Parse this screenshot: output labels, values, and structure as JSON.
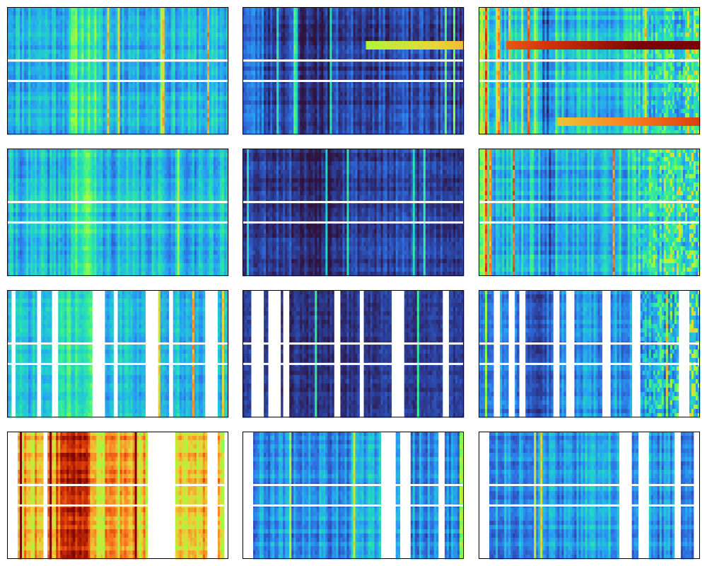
{
  "figure": {
    "title": "",
    "background": "#ffffff"
  },
  "chart_data": {
    "type": "heatmap",
    "layout": {
      "rows": 4,
      "cols": 3
    },
    "colormap": "jet",
    "axes": {
      "ticks": false,
      "xlabel": "",
      "ylabel": ""
    },
    "palette": [
      "#30123b",
      "#2b3f9a",
      "#2f6fe0",
      "#27a7f2",
      "#22d6c4",
      "#3ff28a",
      "#a2fc3c",
      "#e9d539",
      "#fb8022",
      "#d23105",
      "#7a0403"
    ],
    "panels": [
      {
        "id": "r1c1",
        "base": 0.34,
        "spread": 0.1,
        "band_boost": [
          [
            90,
            125,
            0.14
          ]
        ],
        "hot_rows": [],
        "right_hot": 0,
        "gaps_x": [],
        "white_rows": [
          0.42,
          0.58
        ],
        "seed": 11
      },
      {
        "id": "r1c2",
        "base": 0.12,
        "spread": 0.08,
        "band_boost": [
          [
            0,
            30,
            0.08
          ],
          [
            75,
            125,
            -0.06
          ]
        ],
        "hot_rows": [
          [
            0.28,
            0.55,
            1.0,
            0.62
          ]
        ],
        "right_hot": 0,
        "gaps_x": [],
        "white_rows": [
          0.42,
          0.58
        ],
        "seed": 23
      },
      {
        "id": "r1c3",
        "base": 0.36,
        "spread": 0.12,
        "band_boost": [
          [
            0,
            15,
            0.25
          ],
          [
            85,
            110,
            -0.15
          ]
        ],
        "hot_rows": [
          [
            0.28,
            0.12,
            1.0,
            0.85
          ],
          [
            0.88,
            0.35,
            1.0,
            0.72
          ]
        ],
        "right_hot": 0.25,
        "gaps_x": [],
        "white_rows": [
          0.42,
          0.58
        ],
        "seed": 37
      },
      {
        "id": "r2c1",
        "base": 0.34,
        "spread": 0.1,
        "band_boost": [
          [
            90,
            125,
            0.14
          ]
        ],
        "hot_rows": [],
        "right_hot": 0,
        "gaps_x": [],
        "white_rows": [
          0.42,
          0.58
        ],
        "seed": 41
      },
      {
        "id": "r2c2",
        "base": 0.11,
        "spread": 0.07,
        "band_boost": [
          [
            75,
            125,
            -0.06
          ]
        ],
        "hot_rows": [],
        "right_hot": 0,
        "gaps_x": [],
        "white_rows": [
          0.42,
          0.58
        ],
        "seed": 53
      },
      {
        "id": "r2c3",
        "base": 0.36,
        "spread": 0.12,
        "band_boost": [
          [
            0,
            15,
            0.22
          ],
          [
            85,
            110,
            -0.15
          ]
        ],
        "hot_rows": [],
        "right_hot": 0.3,
        "gaps_x": [],
        "white_rows": [
          0.42,
          0.58
        ],
        "seed": 67
      },
      {
        "id": "r3c1",
        "base": 0.34,
        "spread": 0.08,
        "band_boost": [
          [
            70,
            120,
            0.1
          ]
        ],
        "hot_rows": [],
        "right_hot": 0,
        "gaps_x": [
          [
            4,
            10
          ],
          [
            40,
            48
          ],
          [
            62,
            70
          ],
          [
            118,
            138
          ],
          [
            150,
            154
          ],
          [
            195,
            212
          ],
          [
            226,
            232
          ],
          [
            278,
            295
          ]
        ],
        "white_rows": [
          0.42,
          0.58
        ],
        "seed": 71
      },
      {
        "id": "r3c2",
        "base": 0.09,
        "spread": 0.04,
        "band_boost": [
          [
            66,
            125,
            -0.02
          ]
        ],
        "hot_rows": [],
        "right_hot": 0,
        "gaps_x": [
          [
            10,
            28
          ],
          [
            34,
            52
          ],
          [
            56,
            66
          ],
          [
            128,
            136
          ],
          [
            164,
            170
          ],
          [
            210,
            228
          ],
          [
            281,
            290
          ]
        ],
        "white_rows": [
          0.42,
          0.58
        ],
        "seed": 83
      },
      {
        "id": "r3c3",
        "base": 0.27,
        "spread": 0.09,
        "band_boost": [
          [
            50,
            110,
            -0.08
          ]
        ],
        "hot_rows": [],
        "right_hot": 0.35,
        "gaps_x": [
          [
            20,
            28
          ],
          [
            40,
            50
          ],
          [
            56,
            66
          ],
          [
            104,
            114
          ],
          [
            122,
            134
          ],
          [
            174,
            184
          ],
          [
            216,
            228
          ],
          [
            280,
            296
          ]
        ],
        "white_rows": [
          0.42,
          0.58
        ],
        "seed": 97
      },
      {
        "id": "r4c1",
        "base": 0.72,
        "spread": 0.1,
        "band_boost": [
          [
            68,
            115,
            0.15
          ]
        ],
        "hot_rows": [],
        "right_hot": 0,
        "gaps_x": [
          [
            0,
            14
          ],
          [
            50,
            56
          ],
          [
            196,
            236
          ],
          [
            282,
            295
          ],
          [
            305,
            312
          ]
        ],
        "white_rows": [
          0.42,
          0.58
        ],
        "seed": 103
      },
      {
        "id": "r4c2",
        "base": 0.25,
        "spread": 0.1,
        "band_boost": [
          [
            150,
            200,
            0.08
          ]
        ],
        "hot_rows": [],
        "right_hot": 0,
        "gaps_x": [
          [
            0,
            14
          ],
          [
            194,
            214
          ],
          [
            222,
            236
          ],
          [
            275,
            283
          ]
        ],
        "white_rows": [
          0.42,
          0.58
        ],
        "seed": 109
      },
      {
        "id": "r4c3",
        "base": 0.27,
        "spread": 0.09,
        "band_boost": [
          [
            150,
            200,
            0.06
          ]
        ],
        "hot_rows": [],
        "right_hot": 0,
        "gaps_x": [
          [
            0,
            14
          ],
          [
            196,
            214
          ],
          [
            223,
            238
          ],
          [
            276,
            285
          ],
          [
            302,
            312
          ]
        ],
        "white_rows": [
          0.42,
          0.58
        ],
        "seed": 113
      }
    ]
  }
}
